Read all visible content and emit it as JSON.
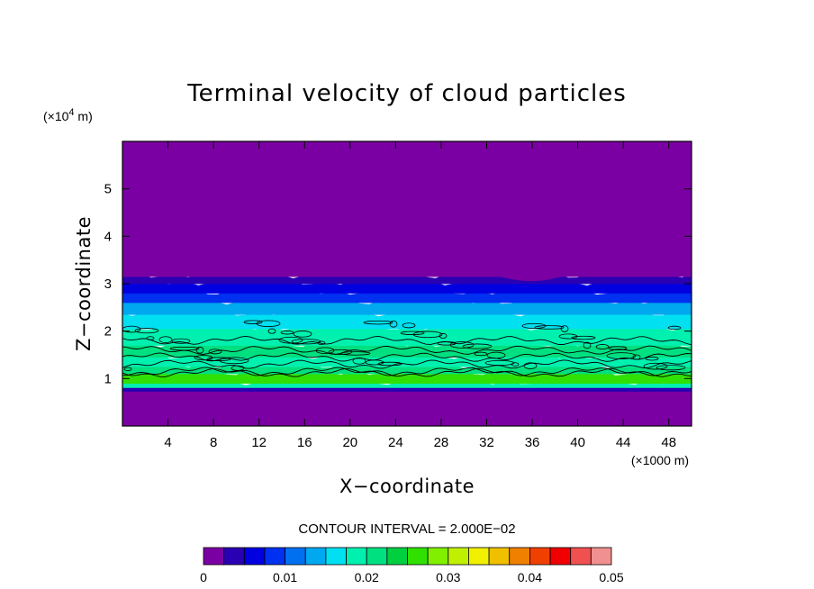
{
  "chart_data": {
    "type": "heatmap",
    "title": "Terminal velocity of cloud particles",
    "xlabel": "X−coordinate",
    "ylabel": "Z−coordinate",
    "x_unit": "(×1000 m)",
    "y_unit_prefix": "(×10",
    "y_unit_exp": "4",
    "y_unit_suffix": " m)",
    "xlim": [
      0,
      50
    ],
    "ylim": [
      0,
      6
    ],
    "xticks": [
      4,
      8,
      12,
      16,
      20,
      24,
      28,
      32,
      36,
      40,
      44,
      48
    ],
    "yticks": [
      1,
      2,
      3,
      4,
      5
    ],
    "contour_interval_text": "CONTOUR INTERVAL = 2.000E−02",
    "colorbar": {
      "min": 0,
      "max": 0.05,
      "tick_labels": [
        "0",
        "0.01",
        "0.02",
        "0.03",
        "0.04",
        "0.05"
      ],
      "colors": [
        "#7b00a3",
        "#2a00b3",
        "#0000e0",
        "#0030f0",
        "#0070f0",
        "#00a8f0",
        "#00e0f0",
        "#00f0b0",
        "#00e080",
        "#00d040",
        "#30e000",
        "#80f000",
        "#c0f000",
        "#f0f000",
        "#f0c000",
        "#f08000",
        "#f04000",
        "#f00000",
        "#f05050",
        "#f09090"
      ]
    },
    "z_bands": [
      {
        "z": [
          0.0,
          0.78
        ],
        "value": 0.0
      },
      {
        "z": [
          0.78,
          0.86
        ],
        "value": 0.005
      },
      {
        "z": [
          0.86,
          0.95
        ],
        "value": 0.018
      },
      {
        "z": [
          0.95,
          1.15
        ],
        "value": 0.026
      },
      {
        "z": [
          1.15,
          1.3
        ],
        "value": 0.022
      },
      {
        "z": [
          1.3,
          1.5
        ],
        "value": 0.02
      },
      {
        "z": [
          1.5,
          1.75
        ],
        "value": 0.021
      },
      {
        "z": [
          1.75,
          2.1
        ],
        "value": 0.018
      },
      {
        "z": [
          2.1,
          2.4
        ],
        "value": 0.016
      },
      {
        "z": [
          2.4,
          2.65
        ],
        "value": 0.013
      },
      {
        "z": [
          2.65,
          2.85
        ],
        "value": 0.01
      },
      {
        "z": [
          2.85,
          3.05
        ],
        "value": 0.007
      },
      {
        "z": [
          3.05,
          3.2
        ],
        "value": 0.003
      },
      {
        "z": [
          3.2,
          6.0
        ],
        "value": 0.0
      }
    ]
  }
}
